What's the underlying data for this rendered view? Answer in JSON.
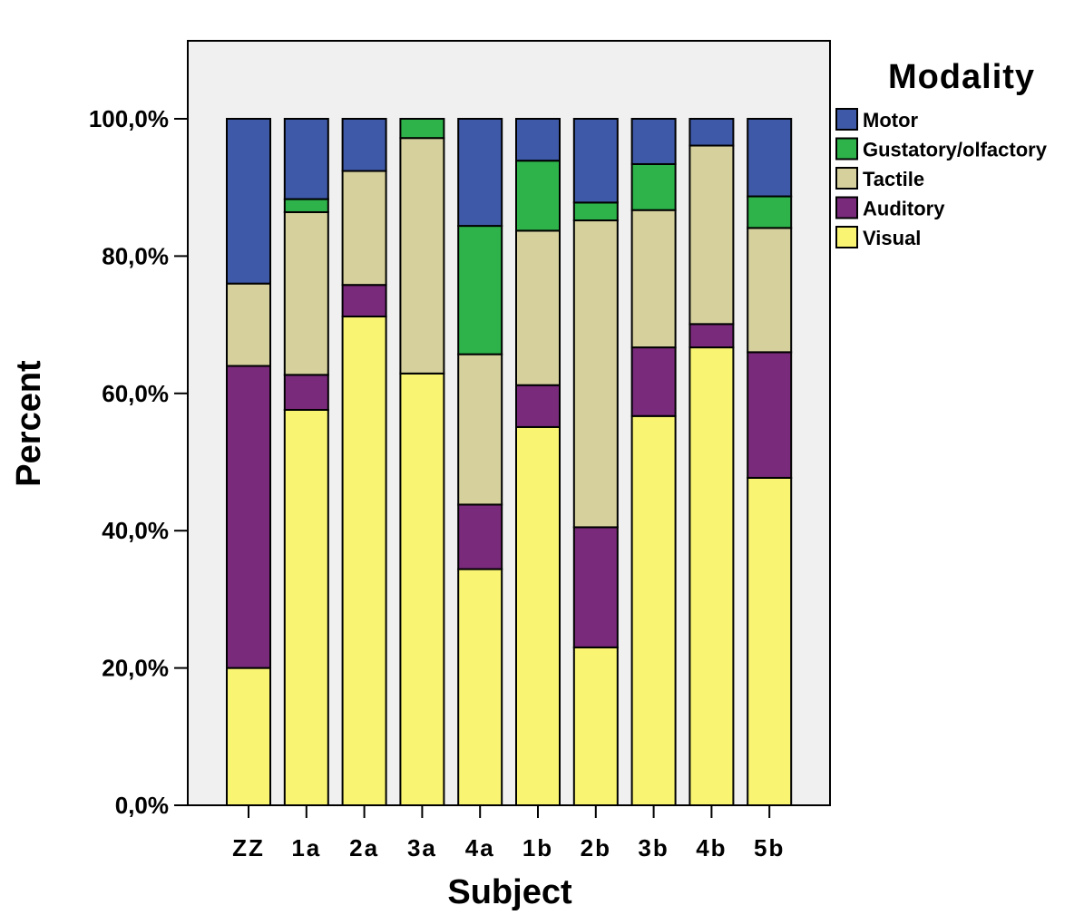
{
  "chart_data": {
    "type": "bar",
    "stacked": true,
    "xlabel": "Subject",
    "ylabel": "Percent",
    "ylim": [
      0,
      100
    ],
    "yticks": [
      "0,0%",
      "20,0%",
      "40,0%",
      "60,0%",
      "80,0%",
      "100,0%"
    ],
    "categories": [
      "ZZ",
      "1a",
      "2a",
      "3a",
      "4a",
      "1b",
      "2b",
      "3b",
      "4b",
      "5b"
    ],
    "legend": {
      "title": "Modality",
      "placement": "top-right",
      "order": [
        "Motor",
        "Gustatory/olfactory",
        "Tactile",
        "Auditory",
        "Visual"
      ]
    },
    "series": [
      {
        "name": "Visual",
        "color": "#f9f573",
        "values": [
          20.0,
          57.6,
          71.2,
          62.9,
          34.4,
          55.1,
          23.0,
          56.7,
          66.7,
          47.7
        ]
      },
      {
        "name": "Auditory",
        "color": "#7a2a7b",
        "values": [
          44.0,
          5.1,
          4.6,
          0.0,
          9.4,
          6.1,
          17.5,
          10.0,
          3.4,
          18.3
        ]
      },
      {
        "name": "Tactile",
        "color": "#d5d09c",
        "values": [
          12.0,
          23.7,
          16.6,
          34.3,
          21.9,
          22.5,
          44.7,
          20.0,
          26.0,
          18.1
        ]
      },
      {
        "name": "Gustatory/olfactory",
        "color": "#2db34a",
        "values": [
          0.0,
          1.9,
          0.0,
          2.8,
          18.7,
          10.2,
          2.6,
          6.7,
          0.0,
          4.6
        ]
      },
      {
        "name": "Motor",
        "color": "#3e59a8",
        "values": [
          24.0,
          11.7,
          7.6,
          0.0,
          15.6,
          6.1,
          12.2,
          6.6,
          3.9,
          11.3
        ]
      }
    ]
  }
}
